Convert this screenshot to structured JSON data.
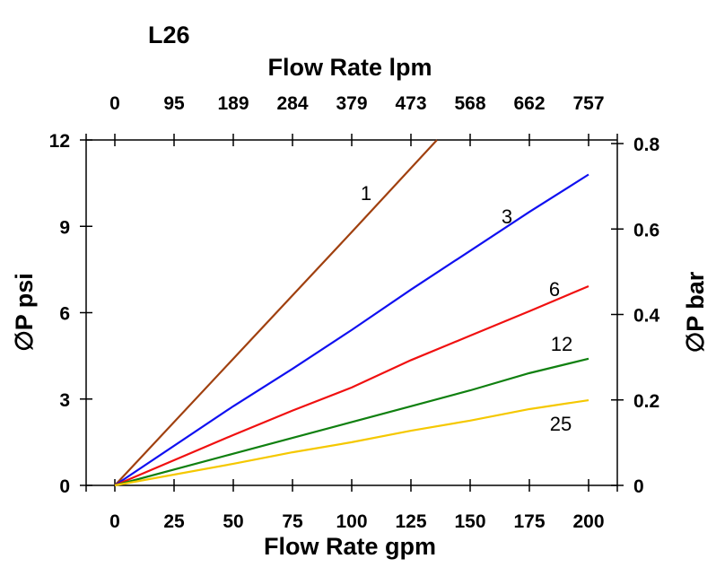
{
  "chart_data": {
    "type": "line",
    "title": "L26",
    "xlabel": "Flow Rate gpm",
    "x2label": "Flow Rate lpm",
    "ylabel": "∅P psi",
    "y2label": "∅P bar",
    "xlim": [
      0,
      200
    ],
    "ylim": [
      0,
      12
    ],
    "y2lim": [
      0,
      0.8
    ],
    "xticks": [
      "0",
      "25",
      "50",
      "75",
      "100",
      "125",
      "150",
      "175",
      "200"
    ],
    "x2ticks": [
      "0",
      "95",
      "189",
      "284",
      "379",
      "473",
      "568",
      "662",
      "757"
    ],
    "yticks": [
      "0",
      "3",
      "6",
      "9",
      "12"
    ],
    "y2ticks": [
      "0",
      "0.2",
      "0.4",
      "0.6",
      "0.8"
    ],
    "grid": false,
    "series": [
      {
        "name": "1",
        "color": "#a0400f",
        "x": [
          0,
          50,
          100,
          136
        ],
        "y": [
          0,
          4.4,
          8.8,
          12
        ]
      },
      {
        "name": "3",
        "color": "#1010f0",
        "x": [
          0,
          50,
          75,
          100,
          125,
          150,
          175,
          200
        ],
        "y": [
          0,
          2.75,
          4.05,
          5.4,
          6.8,
          8.15,
          9.5,
          10.8
        ]
      },
      {
        "name": "6",
        "color": "#f01010",
        "x": [
          0,
          50,
          75,
          100,
          125,
          150,
          175,
          200
        ],
        "y": [
          0,
          1.75,
          2.6,
          3.4,
          4.35,
          5.2,
          6.05,
          6.92
        ]
      },
      {
        "name": "12",
        "color": "#108010",
        "x": [
          0,
          50,
          75,
          100,
          125,
          150,
          175,
          200
        ],
        "y": [
          0,
          1.1,
          1.65,
          2.2,
          2.75,
          3.3,
          3.9,
          4.4
        ]
      },
      {
        "name": "25",
        "color": "#f5c800",
        "x": [
          0,
          50,
          75,
          100,
          125,
          150,
          175,
          200
        ],
        "y": [
          0,
          0.75,
          1.15,
          1.5,
          1.9,
          2.25,
          2.65,
          2.96
        ]
      }
    ]
  }
}
